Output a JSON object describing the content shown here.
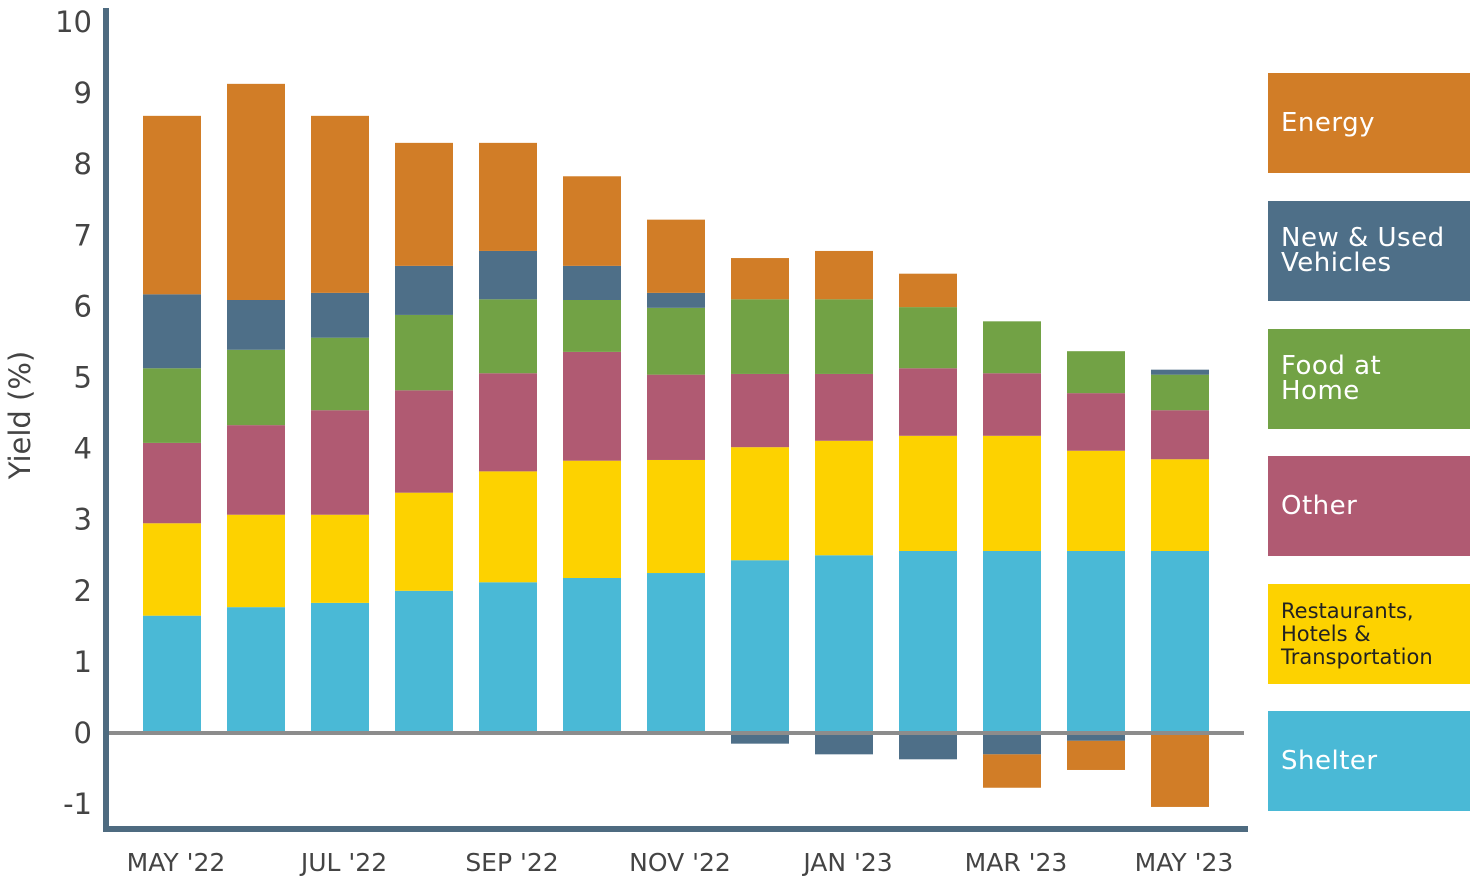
{
  "chart_data": {
    "type": "bar",
    "stacked": true,
    "title": "",
    "xlabel": "",
    "ylabel": "Yield (%)",
    "ylim": [
      -1,
      10
    ],
    "yticks": [
      -1,
      0,
      1,
      2,
      3,
      4,
      5,
      6,
      7,
      8,
      9,
      10
    ],
    "xtick_labels": [
      {
        "index": 0,
        "label": "MAY '22"
      },
      {
        "index": 2,
        "label": "JUL '22"
      },
      {
        "index": 4,
        "label": "SEP '22"
      },
      {
        "index": 6,
        "label": "NOV '22"
      },
      {
        "index": 8,
        "label": "JAN '23"
      },
      {
        "index": 10,
        "label": "MAR '23"
      },
      {
        "index": 12,
        "label": "MAY '23"
      }
    ],
    "grid": false,
    "legend_placement": "right",
    "series": [
      {
        "name": "Shelter",
        "color": "#4AB9D6",
        "values": [
          1.65,
          1.77,
          1.83,
          2.0,
          2.12,
          2.18,
          2.25,
          2.43,
          2.5,
          2.56,
          2.56,
          2.56,
          2.56
        ]
      },
      {
        "name": "Restaurants, Hotels & Transportation",
        "color": "#FDD200",
        "values": [
          1.3,
          1.3,
          1.24,
          1.38,
          1.56,
          1.65,
          1.59,
          1.59,
          1.61,
          1.62,
          1.62,
          1.41,
          1.29
        ]
      },
      {
        "name": "Other",
        "color": "#B05A72",
        "values": [
          1.13,
          1.26,
          1.47,
          1.44,
          1.38,
          1.53,
          1.2,
          1.03,
          0.94,
          0.95,
          0.88,
          0.81,
          0.69
        ]
      },
      {
        "name": "Food at Home",
        "color": "#72A245",
        "values": [
          1.05,
          1.06,
          1.02,
          1.06,
          1.04,
          0.73,
          0.94,
          1.05,
          1.05,
          0.86,
          0.73,
          0.59,
          0.5
        ]
      },
      {
        "name": "New & Used Vehicles",
        "color": "#4E6F88",
        "values": [
          1.04,
          0.7,
          0.63,
          0.69,
          0.68,
          0.48,
          0.21,
          -0.15,
          -0.3,
          -0.37,
          -0.3,
          -0.11,
          0.07
        ]
      },
      {
        "name": "Energy",
        "color": "#D17D27",
        "values": [
          2.51,
          3.04,
          2.49,
          1.73,
          1.52,
          1.26,
          1.03,
          0.58,
          0.68,
          0.47,
          -0.47,
          -0.41,
          -1.04
        ]
      }
    ]
  },
  "legend_order": [
    5,
    4,
    3,
    2,
    1,
    0
  ],
  "legend_labels": {
    "energy": "Energy",
    "vehicles_1": "New & Used",
    "vehicles_2": "Vehicles",
    "food_1": "Food at",
    "food_2": "Home",
    "other": "Other",
    "rest_1": "Restaurants,",
    "rest_2": "Hotels &",
    "rest_3": "Transportation",
    "shelter": "Shelter"
  },
  "colors": {
    "axis": "#4E6B80",
    "zero_line": "#8C8C8C"
  }
}
